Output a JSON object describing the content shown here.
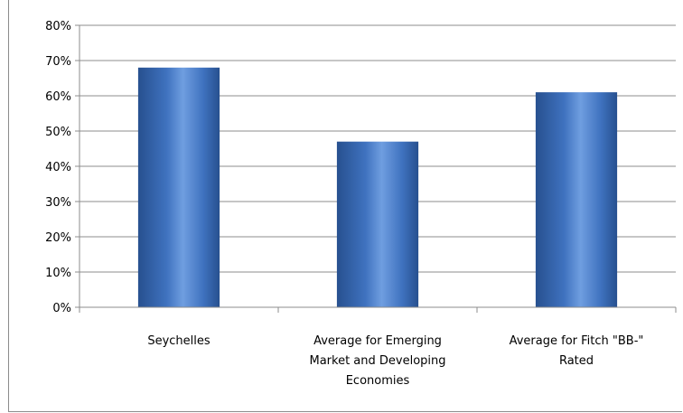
{
  "chart_data": {
    "type": "bar",
    "categories": [
      [
        "Seychelles"
      ],
      [
        "Average for Emerging",
        "Market and Developing",
        "Economies"
      ],
      [
        "Average for Fitch \"BB-\"",
        "Rated"
      ]
    ],
    "values": [
      68,
      47,
      61
    ],
    "unit": "%",
    "ylim": [
      0,
      80
    ],
    "yticks": [
      "0%",
      "10%",
      "20%",
      "30%",
      "40%",
      "50%",
      "60%",
      "70%",
      "80%"
    ],
    "grid": true,
    "legend": "none",
    "colors": {
      "bar_light": "#6f9ee0",
      "bar_mid": "#3f72bf",
      "bar_dark": "#27508f",
      "grid": "#8c8c8c",
      "axis": "#8c8c8c"
    }
  }
}
